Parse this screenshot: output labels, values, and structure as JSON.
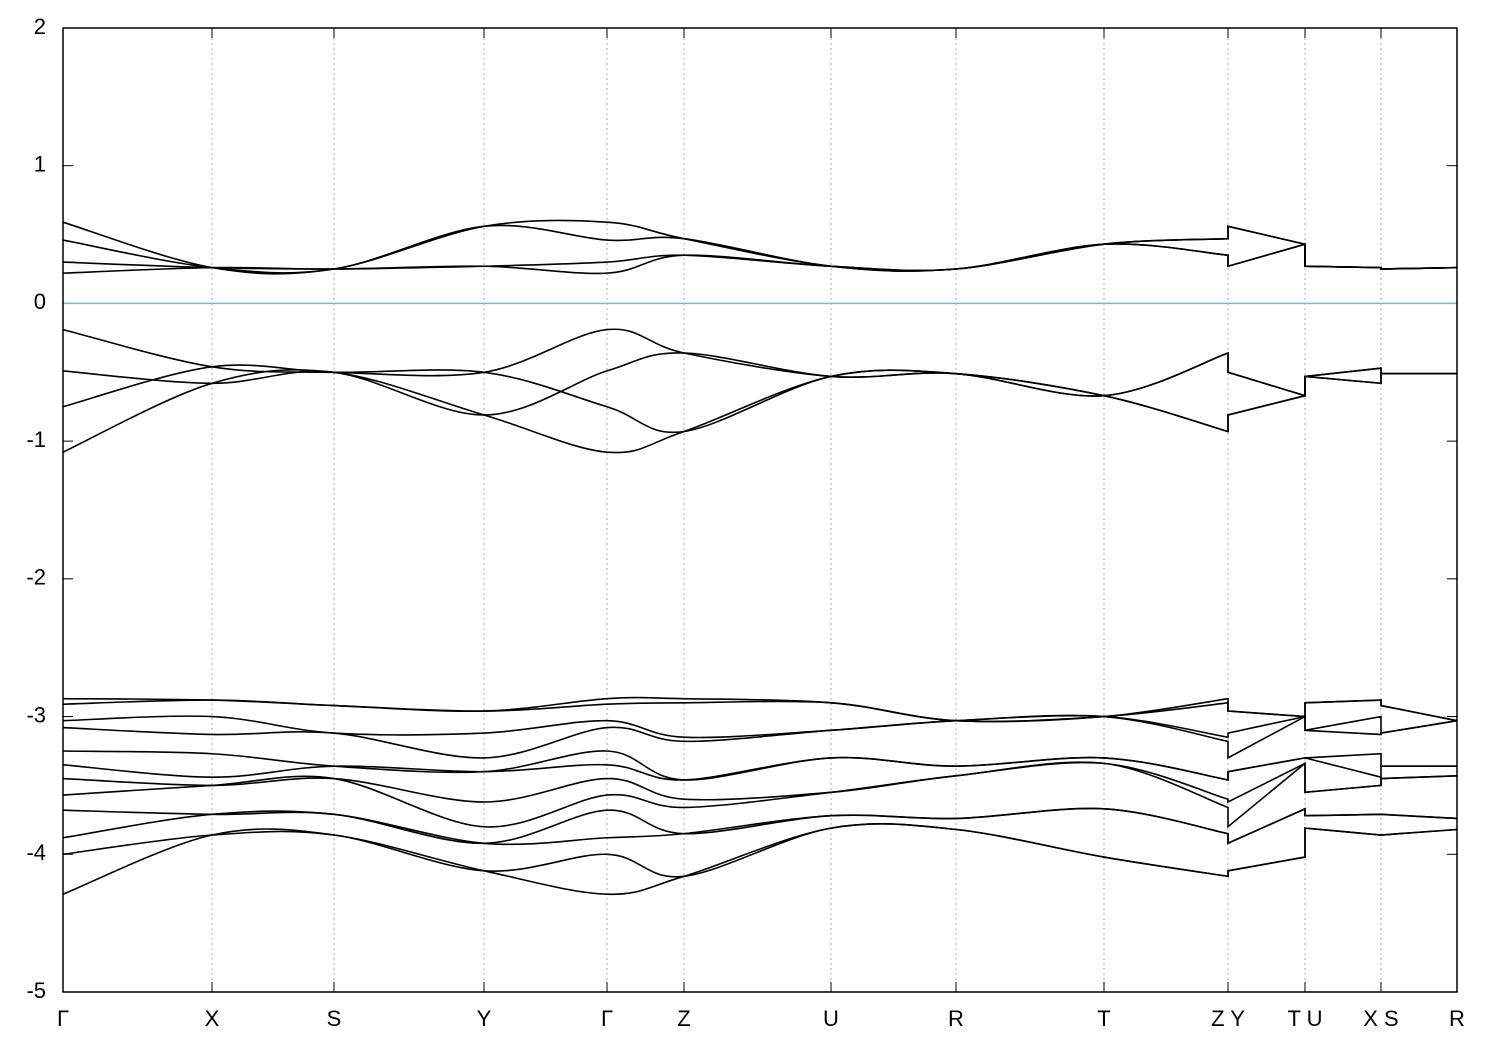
{
  "chart_data": {
    "type": "line",
    "x": [
      0,
      1.49,
      2.71,
      4.21,
      5.44,
      6.21,
      7.68,
      8.93,
      10.41,
      11.65,
      11.65,
      12.42,
      12.42,
      13.18,
      13.18,
      13.94
    ],
    "xlim": [
      0,
      13.94
    ],
    "xticks": [
      {
        "value": 0,
        "label": "Γ"
      },
      {
        "value": 1.49,
        "label": "X"
      },
      {
        "value": 2.71,
        "label": "S"
      },
      {
        "value": 4.21,
        "label": "Y"
      },
      {
        "value": 5.44,
        "label": "Γ"
      },
      {
        "value": 6.21,
        "label": "Z"
      },
      {
        "value": 7.68,
        "label": "U"
      },
      {
        "value": 8.93,
        "label": "R"
      },
      {
        "value": 10.41,
        "label": "T"
      },
      {
        "value": 11.65,
        "label": "Z Y"
      },
      {
        "value": 12.42,
        "label": "T U"
      },
      {
        "value": 13.18,
        "label": "X S"
      },
      {
        "value": 13.94,
        "label": "R"
      }
    ],
    "ylim": [
      -5,
      2
    ],
    "yticks": [
      -5,
      -4,
      -3,
      -2,
      -1,
      0,
      1,
      2
    ],
    "grid_x": true,
    "reference_line": {
      "y": 0,
      "color": "#6cbccc"
    },
    "series": [
      {
        "color": "#000000",
        "values": [
          0.59,
          0.26,
          0.25,
          0.56,
          0.59,
          0.47,
          0.27,
          0.25,
          0.43,
          0.47,
          0.56,
          0.43,
          0.27,
          0.26,
          0.25,
          0.26
        ]
      },
      {
        "color": "#000000",
        "values": [
          0.46,
          0.26,
          0.25,
          0.56,
          0.46,
          0.47,
          0.27,
          0.25,
          0.43,
          0.47,
          0.56,
          0.43,
          0.27,
          0.26,
          0.25,
          0.26
        ]
      },
      {
        "color": "#000000",
        "values": [
          0.3,
          0.26,
          0.25,
          0.27,
          0.3,
          0.35,
          0.27,
          0.25,
          0.43,
          0.35,
          0.27,
          0.43,
          0.27,
          0.26,
          0.25,
          0.26
        ]
      },
      {
        "color": "#000000",
        "values": [
          0.22,
          0.26,
          0.25,
          0.27,
          0.22,
          0.35,
          0.27,
          0.25,
          0.43,
          0.35,
          0.27,
          0.43,
          0.27,
          0.26,
          0.25,
          0.26
        ]
      },
      {
        "color": "#000000",
        "values": [
          -0.19,
          -0.46,
          -0.5,
          -0.5,
          -0.19,
          -0.36,
          -0.53,
          -0.51,
          -0.67,
          -0.36,
          -0.5,
          -0.67,
          -0.53,
          -0.47,
          -0.51,
          -0.51
        ]
      },
      {
        "color": "#000000",
        "values": [
          -0.49,
          -0.58,
          -0.5,
          -0.81,
          -0.49,
          -0.36,
          -0.53,
          -0.51,
          -0.67,
          -0.36,
          -0.5,
          -0.67,
          -0.53,
          -0.58,
          -0.51,
          -0.51
        ]
      },
      {
        "color": "#000000",
        "values": [
          -0.75,
          -0.46,
          -0.5,
          -0.5,
          -0.75,
          -0.93,
          -0.53,
          -0.51,
          -0.67,
          -0.93,
          -0.81,
          -0.67,
          -0.53,
          -0.47,
          -0.51,
          -0.51
        ]
      },
      {
        "color": "#000000",
        "values": [
          -1.08,
          -0.58,
          -0.5,
          -0.81,
          -1.08,
          -0.93,
          -0.53,
          -0.51,
          -0.67,
          -0.93,
          -0.81,
          -0.67,
          -0.53,
          -0.58,
          -0.51,
          -0.51
        ]
      },
      {
        "color": "#000000",
        "values": [
          -2.87,
          -2.88,
          -2.92,
          -2.96,
          -2.87,
          -2.87,
          -2.9,
          -3.03,
          -3.0,
          -2.87,
          -2.96,
          -3.0,
          -2.9,
          -2.88,
          -2.92,
          -3.03
        ]
      },
      {
        "color": "#000000",
        "values": [
          -2.91,
          -2.88,
          -2.92,
          -2.96,
          -2.91,
          -2.9,
          -2.9,
          -3.03,
          -3.0,
          -2.9,
          -2.96,
          -3.0,
          -2.9,
          -2.88,
          -2.92,
          -3.03
        ]
      },
      {
        "color": "#000000",
        "values": [
          -3.03,
          -3.0,
          -3.12,
          -3.12,
          -3.03,
          -3.15,
          -3.1,
          -3.03,
          -3.0,
          -3.15,
          -3.12,
          -3.0,
          -3.1,
          -3.0,
          -3.12,
          -3.03
        ]
      },
      {
        "color": "#000000",
        "values": [
          -3.08,
          -3.13,
          -3.12,
          -3.3,
          -3.08,
          -3.18,
          -3.1,
          -3.03,
          -3.0,
          -3.18,
          -3.3,
          -3.0,
          -3.1,
          -3.13,
          -3.12,
          -3.03
        ]
      },
      {
        "color": "#000000",
        "values": [
          -3.25,
          -3.27,
          -3.36,
          -3.4,
          -3.25,
          -3.46,
          -3.3,
          -3.36,
          -3.3,
          -3.46,
          -3.4,
          -3.3,
          -3.3,
          -3.27,
          -3.36,
          -3.36
        ]
      },
      {
        "color": "#000000",
        "values": [
          -3.35,
          -3.44,
          -3.36,
          -3.4,
          -3.35,
          -3.46,
          -3.3,
          -3.36,
          -3.3,
          -3.46,
          -3.4,
          -3.3,
          -3.3,
          -3.44,
          -3.36,
          -3.36
        ]
      },
      {
        "color": "#000000",
        "values": [
          -3.45,
          -3.5,
          -3.45,
          -3.62,
          -3.45,
          -3.6,
          -3.55,
          -3.43,
          -3.34,
          -3.6,
          -3.62,
          -3.34,
          -3.55,
          -3.5,
          -3.45,
          -3.43
        ]
      },
      {
        "color": "#000000",
        "values": [
          -3.57,
          -3.5,
          -3.45,
          -3.8,
          -3.57,
          -3.66,
          -3.55,
          -3.43,
          -3.34,
          -3.66,
          -3.8,
          -3.34,
          -3.55,
          -3.5,
          -3.45,
          -3.43
        ]
      },
      {
        "color": "#000000",
        "values": [
          -3.68,
          -3.71,
          -3.71,
          -3.92,
          -3.68,
          -3.85,
          -3.72,
          -3.74,
          -3.67,
          -3.85,
          -3.92,
          -3.67,
          -3.72,
          -3.71,
          -3.71,
          -3.74
        ]
      },
      {
        "color": "#000000",
        "values": [
          -3.88,
          -3.71,
          -3.71,
          -3.92,
          -3.88,
          -3.85,
          -3.72,
          -3.74,
          -3.67,
          -3.85,
          -3.92,
          -3.67,
          -3.72,
          -3.71,
          -3.71,
          -3.74
        ]
      },
      {
        "color": "#000000",
        "values": [
          -4.0,
          -3.86,
          -3.86,
          -4.12,
          -4.0,
          -4.16,
          -3.81,
          -3.82,
          -4.02,
          -4.16,
          -4.12,
          -4.02,
          -3.81,
          -3.86,
          -3.86,
          -3.82
        ]
      },
      {
        "color": "#000000",
        "values": [
          -4.29,
          -3.86,
          -3.86,
          -4.12,
          -4.29,
          -4.16,
          -3.81,
          -3.82,
          -4.02,
          -4.16,
          -4.12,
          -4.02,
          -3.81,
          -3.86,
          -3.86,
          -3.82
        ]
      }
    ]
  }
}
